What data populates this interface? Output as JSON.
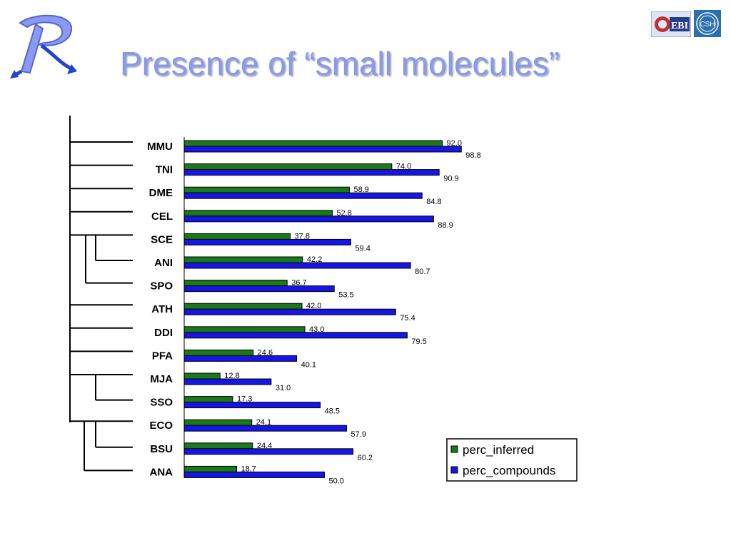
{
  "slide": {
    "title": "Presence of “small molecules”"
  },
  "logos": {
    "r_logo_icon": "stylized-r-logo-icon",
    "ebi_logo_text": "EBI",
    "csh_logo_text": "CSH"
  },
  "colors": {
    "title": "#8899ee",
    "perc_inferred": "#1a7a1a",
    "perc_compounds": "#1515e6"
  },
  "chart_data": {
    "type": "bar",
    "orientation": "horizontal",
    "categories": [
      "MMU",
      "TNI",
      "DME",
      "CEL",
      "SCE",
      "ANI",
      "SPO",
      "ATH",
      "DDI",
      "PFA",
      "MJA",
      "SSO",
      "ECO",
      "BSU",
      "ANA"
    ],
    "series": [
      {
        "name": "perc_inferred",
        "values": [
          92.0,
          74.0,
          58.9,
          52.8,
          37.8,
          42.2,
          36.7,
          42.0,
          43.0,
          24.6,
          12.8,
          17.3,
          24.1,
          24.4,
          18.7
        ],
        "labels": [
          "92.0",
          "74.0",
          "58.9",
          "52.8",
          "37.8",
          "42.2",
          "36.7",
          "42.0",
          "43.0",
          "24.6",
          "12.8",
          "17.3",
          "24.1",
          "24.4",
          "18.7"
        ]
      },
      {
        "name": "perc_compounds",
        "values": [
          98.8,
          90.9,
          84.8,
          88.9,
          59.4,
          80.7,
          53.5,
          75.4,
          79.5,
          40.1,
          31.0,
          48.5,
          57.9,
          60.2,
          50.0
        ],
        "labels": [
          "98.8",
          "90.9",
          "84.8",
          "88.9",
          "59.4",
          "80.7",
          "53.5",
          "75.4",
          "79.5",
          "40.1",
          "31.0",
          "48.5",
          "57.9",
          "60.2",
          "50.0"
        ]
      }
    ],
    "xlim": [
      0,
      100
    ],
    "legend_position": "bottom-right",
    "grid": false
  }
}
